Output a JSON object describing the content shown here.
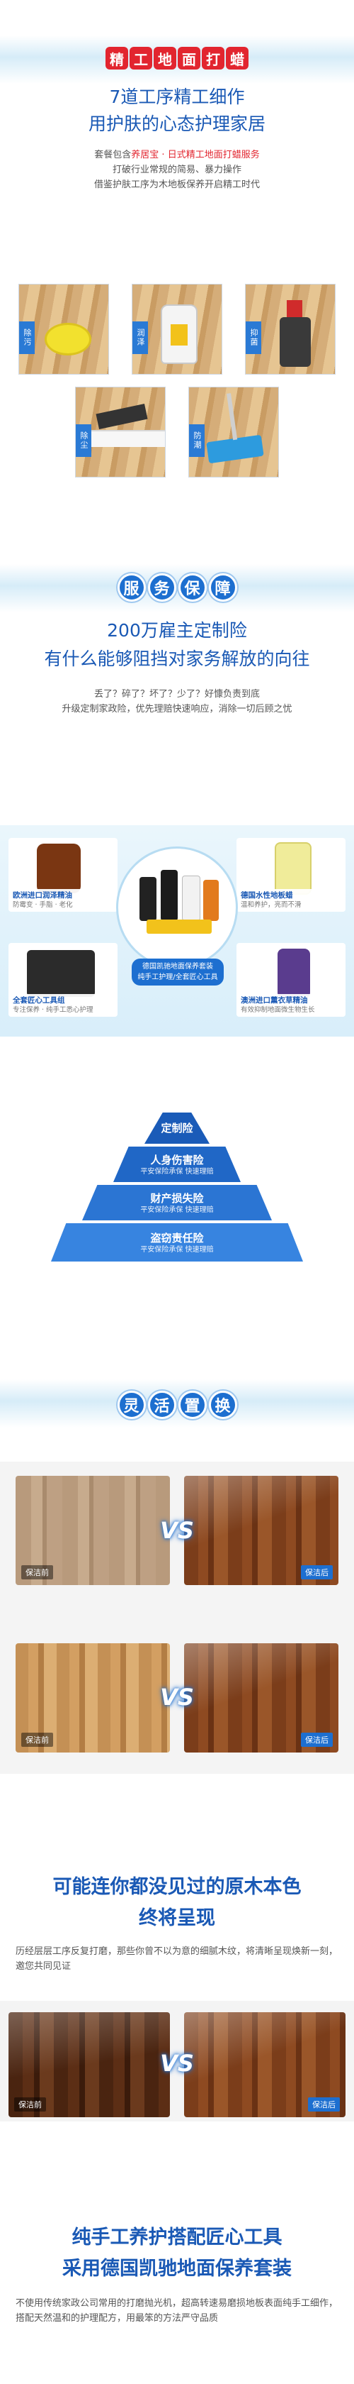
{
  "section1": {
    "badges": [
      "精",
      "工",
      "地",
      "面",
      "打",
      "蜡"
    ],
    "title_line1": "7道工序精工细作",
    "title_line2": "用护肤的心态护理家居",
    "desc_pre": "套餐包含",
    "desc_hl": "养居宝 · 日式精工地面打蜡服务",
    "desc_line2": "打破行业常规的简易、暴力操作",
    "desc_line3": "借鉴护肤工序为木地板保养开启精工时代",
    "steps": [
      {
        "tag": "除污"
      },
      {
        "tag": "润泽"
      },
      {
        "tag": "抑菌"
      },
      {
        "tag": "除尘"
      },
      {
        "tag": "防潮"
      }
    ]
  },
  "section2": {
    "badges": [
      "服",
      "务",
      "保",
      "障"
    ],
    "title_line1": "200万雇主定制险",
    "title_line2": "有什么能够阻挡对家务解放的向往",
    "desc_line1": "丢了？碎了？坏了？少了？好慷负责到底",
    "desc_line2": "升级定制家政险，优先理赔快速响应，消除一切后顾之忧"
  },
  "products": {
    "items": [
      {
        "name": "欧洲进口润泽精油",
        "sub": "防霉变 · 手脂 · 老化"
      },
      {
        "name": "德国水性地板蜡",
        "sub": "温和养护，亮而不滑"
      },
      {
        "name": "全套匠心工具组",
        "sub": "专注保养 · 纯手工悉心护理"
      },
      {
        "name": "澳洲进口薰衣草精油",
        "sub": "有效抑制地面微生物生长"
      }
    ],
    "center_line1": "德国凯驰地面保养套装",
    "center_line2": "纯手工护理/全套匠心工具"
  },
  "insurance": {
    "tiers": [
      {
        "name": "定制险",
        "sub": ""
      },
      {
        "name": "人身伤害险",
        "sub": "平安保险承保 快速理赔"
      },
      {
        "name": "财产损失险",
        "sub": "平安保险承保 快速理赔"
      },
      {
        "name": "盗窃责任险",
        "sub": "平安保险承保 快速理赔"
      }
    ]
  },
  "section3": {
    "badges": [
      "灵",
      "活",
      "置",
      "换"
    ],
    "before_label": "保洁前",
    "after_label": "保洁后",
    "vs": "VS"
  },
  "section4": {
    "title_line1": "可能连你都没见过的原木本色",
    "title_line2": "终将呈现",
    "desc": "历经层层工序反复打磨，那些你曾不以为意的细腻木纹，将清晰呈现焕新一刻，邀您共同见证"
  },
  "section5": {
    "title_line1": "纯手工养护搭配匠心工具",
    "title_line2": "采用德国凯驰地面保养套装",
    "desc": "不使用传统家政公司常用的打磨抛光机，超高转速易磨损地板表面纯手工细作，搭配天然温和的护理配方，用最笨的方法严守品质"
  },
  "colors": {
    "brand_blue": "#1d6fd0",
    "accent_red": "#e2252f",
    "title_blue": "#1a59b5"
  }
}
